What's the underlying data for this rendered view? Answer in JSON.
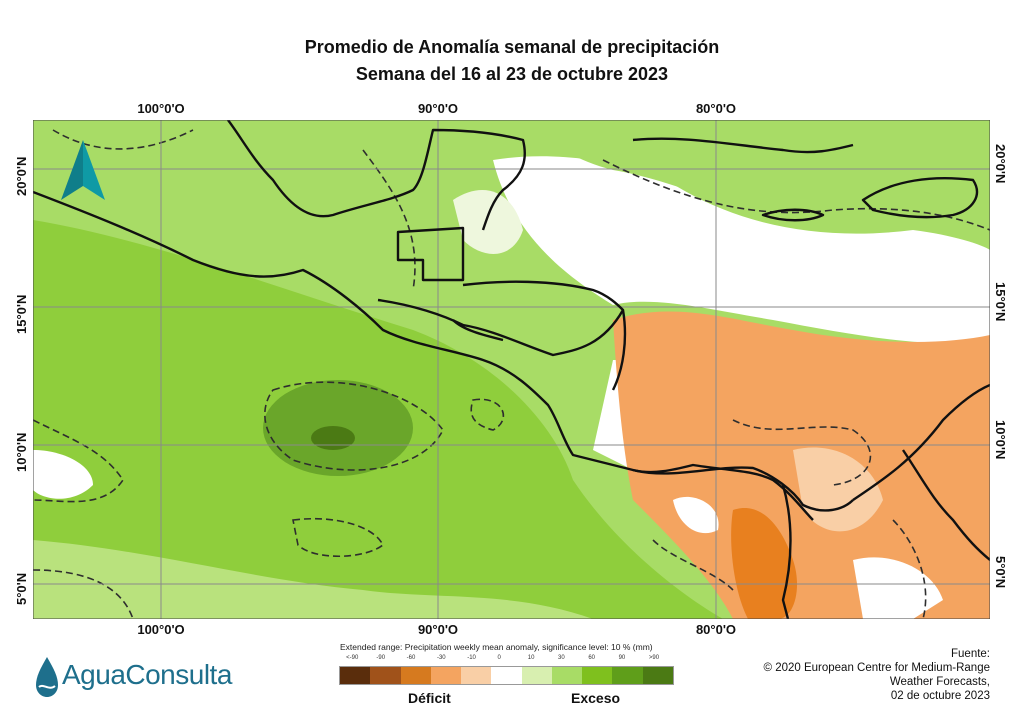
{
  "title": {
    "line1": "Promedio de Anomalía semanal de precipitación",
    "line2": "Semana del 16 al 23 de octubre 2023"
  },
  "map": {
    "lon_labels": [
      "100°0'O",
      "90°0'O",
      "80°0'O"
    ],
    "lat_labels": [
      "20°0'N",
      "15°0'N",
      "10°0'N",
      "5°0'N"
    ],
    "north_arrow": "north-arrow-icon"
  },
  "legend": {
    "caption": "Extended range: Precipitation weekly mean anomaly, significance level: 10 % (mm)",
    "ticks": [
      "<-90",
      "-90",
      "-60",
      "-30",
      "-10",
      "0",
      "10",
      "30",
      "60",
      "90",
      ">90"
    ],
    "colors": [
      "#5a2d0c",
      "#a0521a",
      "#d67a1f",
      "#f4a460",
      "#f9cfa6",
      "#ffffff",
      "#d8efb0",
      "#a8dc66",
      "#7fc01e",
      "#5f9e1a",
      "#4b7a14"
    ],
    "deficit": "Déficit",
    "exceso": "Exceso"
  },
  "logo": {
    "text": "AguaConsulta"
  },
  "source": {
    "line1": "Fuente:",
    "line2": "© 2020 European Centre for Medium-Range",
    "line3": "Weather Forecasts,",
    "line4": "02 de octubre 2023"
  }
}
